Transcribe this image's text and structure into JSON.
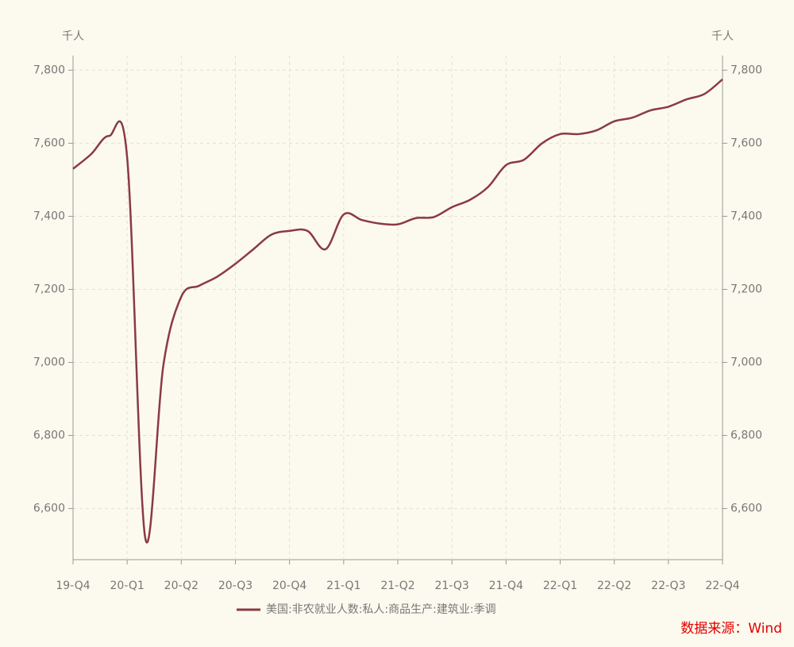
{
  "chart_data": {
    "type": "line",
    "y_unit_left": "千人",
    "y_unit_right": "千人",
    "categories": [
      "19-Q4",
      null,
      null,
      "20-Q1",
      null,
      null,
      "20-Q2",
      null,
      null,
      "20-Q3",
      null,
      null,
      "20-Q4",
      null,
      null,
      "21-Q1",
      null,
      null,
      "21-Q2",
      null,
      null,
      "21-Q3",
      null,
      null,
      "21-Q4",
      null,
      null,
      "22-Q1",
      null,
      null,
      "22-Q2",
      null,
      null,
      "22-Q3",
      null,
      null,
      "22-Q4"
    ],
    "series": [
      {
        "name": "美国:非农就业人数:私人:商品生产:建筑业:季调",
        "color": "#8b3a44",
        "values": [
          7530,
          7570,
          7620,
          7560,
          6520,
          6990,
          7180,
          7210,
          7235,
          7270,
          7310,
          7350,
          7360,
          7360,
          7310,
          7405,
          7390,
          7380,
          7378,
          7395,
          7398,
          7425,
          7445,
          7480,
          7540,
          7555,
          7600,
          7625,
          7625,
          7635,
          7660,
          7670,
          7690,
          7700,
          7720,
          7735,
          7775
        ]
      }
    ],
    "ylim": [
      6460,
      7840
    ],
    "yticks": [
      {
        "value": 6600,
        "label": "6,600"
      },
      {
        "value": 6800,
        "label": "6,800"
      },
      {
        "value": 7000,
        "label": "7,000"
      },
      {
        "value": 7200,
        "label": "7,200"
      },
      {
        "value": 7400,
        "label": "7,400"
      },
      {
        "value": 7600,
        "label": "7,600"
      },
      {
        "value": 7800,
        "label": "7,800"
      }
    ],
    "grid": true,
    "source": "数据来源：Wind"
  }
}
